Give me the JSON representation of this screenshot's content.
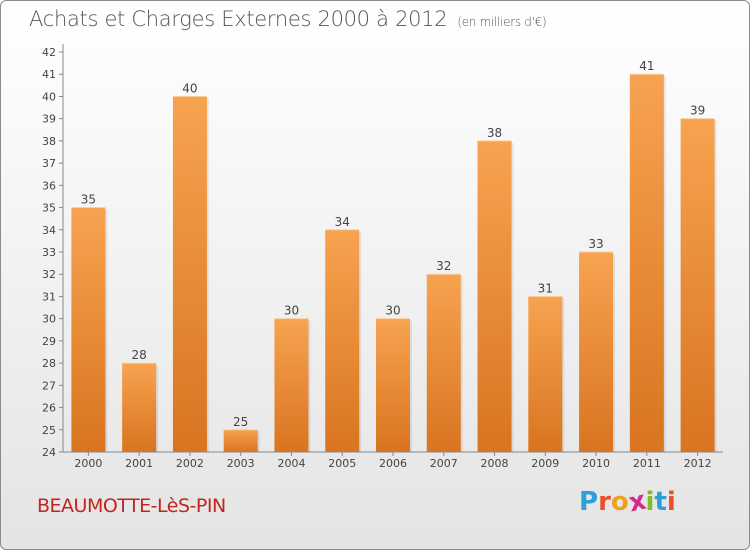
{
  "header": {
    "title": "Achats et Charges Externes 2000 à 2012",
    "subtitle": "(en milliers d'€)"
  },
  "footer": {
    "commune": "BEAUMOTTE-LèS-PIN",
    "logo": [
      "P",
      "r",
      "o",
      "x",
      "i",
      "t",
      "i"
    ]
  },
  "colors": {
    "bar_top": "#f7a350",
    "bar_bottom": "#d97420",
    "commune": "#c4241e",
    "logo": [
      "#2f9fd8",
      "#e8502a",
      "#f0a020",
      "#d42a8c",
      "#7cbf2a",
      "#2f9fd8",
      "#e8502a"
    ]
  },
  "chart_data": {
    "type": "bar",
    "title": "Achats et Charges Externes 2000 à 2012",
    "subtitle": "(en milliers d'€)",
    "categories": [
      "2000",
      "2001",
      "2002",
      "2003",
      "2004",
      "2005",
      "2006",
      "2007",
      "2008",
      "2009",
      "2010",
      "2011",
      "2012"
    ],
    "values": [
      35,
      28,
      40,
      25,
      30,
      34,
      30,
      32,
      38,
      31,
      33,
      41,
      39
    ],
    "ylim": [
      24,
      42
    ],
    "ytick_step": 1,
    "grid": false,
    "data_labels": true,
    "xlabel": "",
    "ylabel": ""
  }
}
